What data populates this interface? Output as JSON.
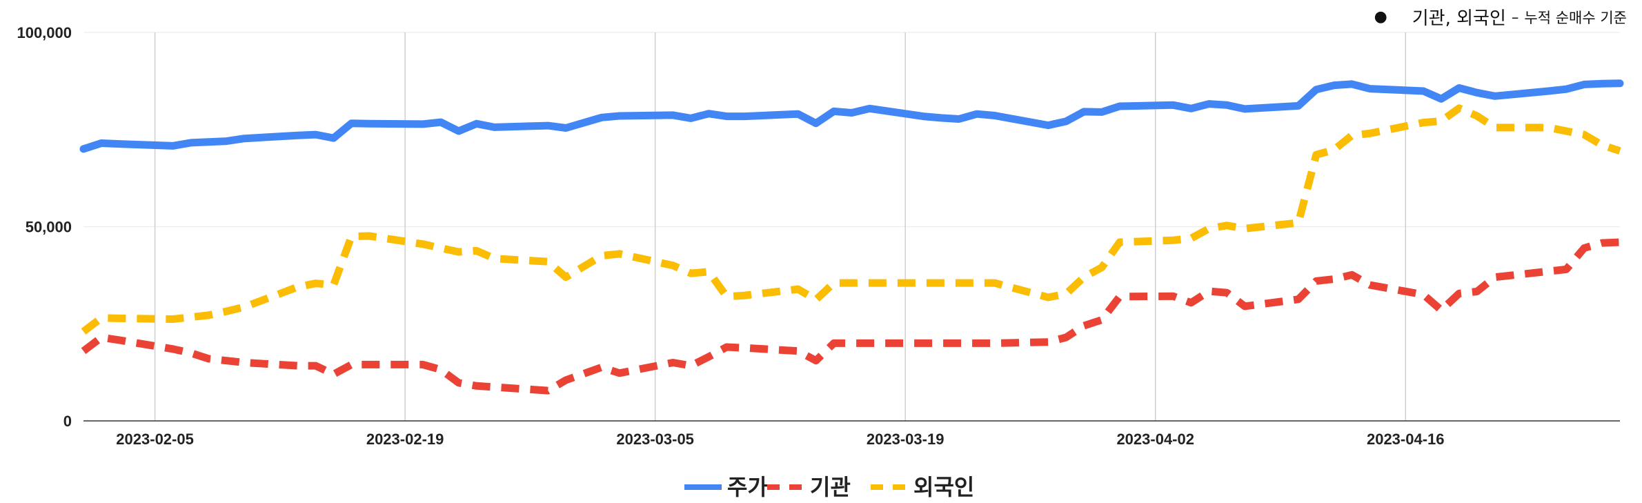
{
  "note": {
    "main": "기관, 외국인",
    "dash": "–",
    "detail": "누적 순매수 기준"
  },
  "chart_data": {
    "type": "line",
    "title": "",
    "xlabel": "",
    "ylabel": "",
    "ylim": [
      0,
      100000
    ],
    "xlim": [
      "2023-02-01",
      "2023-04-28"
    ],
    "y_ticks": [
      0,
      50000,
      100000
    ],
    "y_tick_labels": [
      "0",
      "50,000",
      "100,000"
    ],
    "x_ticks": [
      "2023-02-05",
      "2023-02-19",
      "2023-03-05",
      "2023-03-19",
      "2023-04-02",
      "2023-04-16"
    ],
    "grid": "vertical",
    "legend": "bottom",
    "x": [
      "2023-02-01",
      "2023-02-02",
      "2023-02-03",
      "2023-02-06",
      "2023-02-07",
      "2023-02-08",
      "2023-02-09",
      "2023-02-10",
      "2023-02-13",
      "2023-02-14",
      "2023-02-15",
      "2023-02-16",
      "2023-02-17",
      "2023-02-20",
      "2023-02-21",
      "2023-02-22",
      "2023-02-23",
      "2023-02-24",
      "2023-02-27",
      "2023-02-28",
      "2023-03-02",
      "2023-03-03",
      "2023-03-06",
      "2023-03-07",
      "2023-03-08",
      "2023-03-09",
      "2023-03-10",
      "2023-03-13",
      "2023-03-14",
      "2023-03-15",
      "2023-03-16",
      "2023-03-17",
      "2023-03-20",
      "2023-03-21",
      "2023-03-22",
      "2023-03-23",
      "2023-03-24",
      "2023-03-27",
      "2023-03-28",
      "2023-03-29",
      "2023-03-30",
      "2023-03-31",
      "2023-04-03",
      "2023-04-04",
      "2023-04-05",
      "2023-04-06",
      "2023-04-07",
      "2023-04-10",
      "2023-04-11",
      "2023-04-12",
      "2023-04-13",
      "2023-04-14",
      "2023-04-17",
      "2023-04-18",
      "2023-04-19",
      "2023-04-20",
      "2023-04-21",
      "2023-04-24",
      "2023-04-25",
      "2023-04-26",
      "2023-04-27",
      "2023-04-28"
    ],
    "series": [
      {
        "name": "주가",
        "color": "#4285f4",
        "dash": "solid",
        "values": [
          70000,
          71500,
          71300,
          70800,
          71600,
          71800,
          72000,
          72700,
          73500,
          73700,
          72800,
          76600,
          76500,
          76400,
          76900,
          74600,
          76500,
          75600,
          76000,
          75400,
          78100,
          78500,
          78700,
          77900,
          79100,
          78400,
          78400,
          79000,
          76600,
          79700,
          79300,
          80400,
          78400,
          78000,
          77700,
          79000,
          78600,
          76100,
          77100,
          79600,
          79500,
          81000,
          81300,
          80400,
          81600,
          81300,
          80300,
          81100,
          85300,
          86400,
          86700,
          85500,
          84900,
          82900,
          85700,
          84500,
          83600,
          84900,
          85400,
          86600,
          86800,
          86900
        ]
      },
      {
        "name": "기관",
        "color": "#ea4335",
        "dash": "dashed",
        "values": [
          18000,
          21500,
          20800,
          18500,
          17500,
          16000,
          15500,
          15000,
          14200,
          14200,
          12000,
          14500,
          14500,
          14500,
          13200,
          9800,
          9000,
          8700,
          7800,
          10500,
          13800,
          12300,
          15000,
          14200,
          16500,
          19000,
          18800,
          18000,
          15500,
          20000,
          20000,
          20000,
          20000,
          20000,
          20000,
          20000,
          20000,
          20300,
          21500,
          24500,
          26000,
          32000,
          32100,
          30400,
          33400,
          33000,
          29500,
          31300,
          36000,
          36500,
          37600,
          35000,
          32500,
          28500,
          32800,
          33300,
          37000,
          38500,
          39000,
          44500,
          45800,
          46000
        ]
      },
      {
        "name": "외국인",
        "color": "#fbbc04",
        "dash": "dashed",
        "values": [
          23000,
          26500,
          26400,
          26200,
          26700,
          27200,
          28200,
          29300,
          34500,
          35400,
          35000,
          47500,
          47600,
          45500,
          44500,
          43500,
          43800,
          41800,
          41000,
          37000,
          42500,
          43000,
          40000,
          38000,
          38400,
          32000,
          32300,
          33900,
          31200,
          35500,
          35500,
          35500,
          35500,
          35500,
          35500,
          35500,
          35500,
          31800,
          32700,
          37000,
          39500,
          46000,
          46500,
          47000,
          49500,
          50300,
          49500,
          51000,
          68500,
          69800,
          73500,
          74000,
          76800,
          77200,
          80500,
          78500,
          75500,
          75500,
          74600,
          73700,
          71000,
          69500
        ]
      }
    ]
  }
}
